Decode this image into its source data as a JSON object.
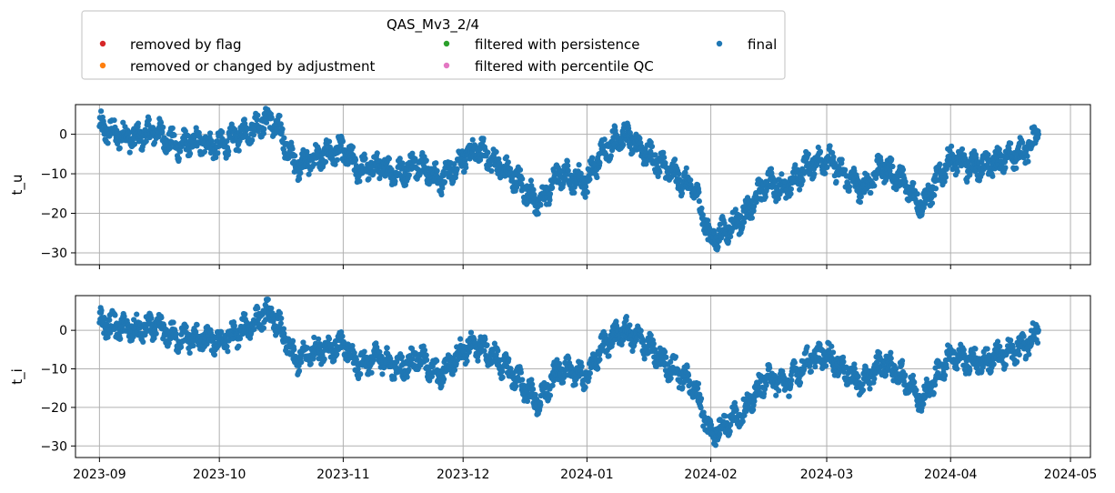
{
  "legend": {
    "title": "QAS_Mv3_2/4",
    "entries": [
      {
        "label": "removed by flag",
        "color": "#d62728"
      },
      {
        "label": "removed or changed by adjustment",
        "color": "#ff7f0e"
      },
      {
        "label": "filtered with persistence",
        "color": "#2ca02c"
      },
      {
        "label": "filtered with percentile QC",
        "color": "#e377c2"
      },
      {
        "label": "final",
        "color": "#1f77b4"
      }
    ]
  },
  "chart_data": [
    {
      "type": "scatter",
      "ylabel": "t_u",
      "xlim": [
        "2023-08-26",
        "2024-05-06"
      ],
      "ylim": [
        -33,
        7.5
      ],
      "yticks": [
        0,
        -10,
        -20,
        -30
      ],
      "xticks": [
        "2023-09",
        "2023-10",
        "2023-11",
        "2023-12",
        "2024-01",
        "2024-02",
        "2024-03",
        "2024-04",
        "2024-05"
      ],
      "show_xtick_labels": false,
      "grid": true,
      "series": [
        {
          "name": "final",
          "color": "#1f77b4",
          "x": [
            "2023-09-01",
            "2023-09-05",
            "2023-09-10",
            "2023-09-15",
            "2023-09-20",
            "2023-09-25",
            "2023-10-01",
            "2023-10-05",
            "2023-10-10",
            "2023-10-13",
            "2023-10-16",
            "2023-10-20",
            "2023-10-25",
            "2023-11-01",
            "2023-11-05",
            "2023-11-10",
            "2023-11-15",
            "2023-11-20",
            "2023-11-25",
            "2023-12-01",
            "2023-12-05",
            "2023-12-10",
            "2023-12-15",
            "2023-12-20",
            "2023-12-25",
            "2024-01-01",
            "2024-01-05",
            "2024-01-10",
            "2024-01-15",
            "2024-01-20",
            "2024-01-25",
            "2024-01-28",
            "2024-02-01",
            "2024-02-05",
            "2024-02-10",
            "2024-02-15",
            "2024-02-20",
            "2024-02-25",
            "2024-03-01",
            "2024-03-05",
            "2024-03-10",
            "2024-03-15",
            "2024-03-20",
            "2024-03-25",
            "2024-04-01",
            "2024-04-05",
            "2024-04-10",
            "2024-04-15",
            "2024-04-20",
            "2024-04-23"
          ],
          "y": [
            2,
            0,
            -1,
            1,
            -3,
            -2,
            -3,
            -1,
            2,
            4,
            1,
            -8,
            -6,
            -4,
            -9,
            -8,
            -10,
            -7,
            -12,
            -6,
            -4,
            -8,
            -12,
            -18,
            -10,
            -12,
            -4,
            0,
            -4,
            -8,
            -12,
            -14,
            -27,
            -24,
            -20,
            -12,
            -14,
            -8,
            -6,
            -10,
            -14,
            -8,
            -12,
            -18,
            -6,
            -8,
            -8,
            -6,
            -4,
            0
          ]
        }
      ]
    },
    {
      "type": "scatter",
      "ylabel": "t_i",
      "xlim": [
        "2023-08-26",
        "2024-05-06"
      ],
      "ylim": [
        -33,
        9
      ],
      "yticks": [
        0,
        -10,
        -20,
        -30
      ],
      "xticks": [
        "2023-09",
        "2023-10",
        "2023-11",
        "2023-12",
        "2024-01",
        "2024-02",
        "2024-03",
        "2024-04",
        "2024-05"
      ],
      "show_xtick_labels": true,
      "grid": true,
      "series": [
        {
          "name": "final",
          "color": "#1f77b4",
          "x": [
            "2023-09-01",
            "2023-09-05",
            "2023-09-10",
            "2023-09-15",
            "2023-09-20",
            "2023-09-25",
            "2023-10-01",
            "2023-10-05",
            "2023-10-10",
            "2023-10-13",
            "2023-10-16",
            "2023-10-20",
            "2023-10-25",
            "2023-11-01",
            "2023-11-05",
            "2023-11-10",
            "2023-11-15",
            "2023-11-20",
            "2023-11-25",
            "2023-12-01",
            "2023-12-05",
            "2023-12-10",
            "2023-12-15",
            "2023-12-20",
            "2023-12-25",
            "2024-01-01",
            "2024-01-05",
            "2024-01-10",
            "2024-01-15",
            "2024-01-20",
            "2024-01-25",
            "2024-01-28",
            "2024-02-01",
            "2024-02-05",
            "2024-02-10",
            "2024-02-15",
            "2024-02-20",
            "2024-02-25",
            "2024-03-01",
            "2024-03-05",
            "2024-03-10",
            "2024-03-15",
            "2024-03-20",
            "2024-03-25",
            "2024-04-01",
            "2024-04-05",
            "2024-04-10",
            "2024-04-15",
            "2024-04-20",
            "2024-04-23"
          ],
          "y": [
            2,
            1,
            0,
            1,
            -2,
            -2,
            -3,
            -1,
            2,
            5,
            1,
            -8,
            -5,
            -4,
            -9,
            -7,
            -10,
            -7,
            -12,
            -5,
            -4,
            -8,
            -13,
            -19,
            -10,
            -12,
            -4,
            0,
            -3,
            -8,
            -12,
            -15,
            -27,
            -24,
            -20,
            -12,
            -14,
            -8,
            -6,
            -10,
            -14,
            -8,
            -12,
            -18,
            -6,
            -8,
            -8,
            -6,
            -4,
            0
          ]
        }
      ]
    }
  ]
}
